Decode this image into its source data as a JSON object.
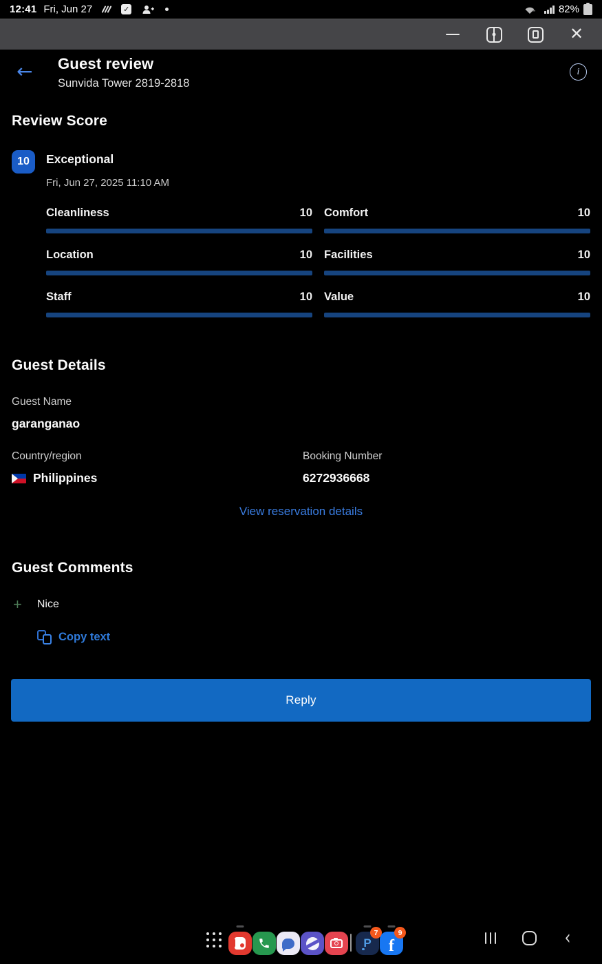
{
  "status_bar": {
    "time": "12:41",
    "date": "Fri, Jun 27",
    "battery": "82%",
    "left_icons": [
      "stylus-icon",
      "checkbox-icon",
      "add-contact-icon",
      "notification-dot"
    ],
    "right_icons": [
      "wifi-icon",
      "signal-icon",
      "battery-icon"
    ]
  },
  "window_controls": {
    "buttons": [
      "minimize",
      "split-screen",
      "pop-up-view",
      "close"
    ],
    "close_glyph": "✕"
  },
  "header": {
    "title": "Guest review",
    "subtitle": "Sunvida Tower 2819-2818",
    "back_glyph": "←",
    "info_glyph": "i"
  },
  "review_score": {
    "heading": "Review Score",
    "overall_score": "10",
    "overall_label": "Exceptional",
    "date": "Fri, Jun 27, 2025 11:10 AM",
    "max_score": 10,
    "categories": [
      {
        "label": "Cleanliness",
        "value": 10
      },
      {
        "label": "Comfort",
        "value": 10
      },
      {
        "label": "Location",
        "value": 10
      },
      {
        "label": "Facilities",
        "value": 10
      },
      {
        "label": "Staff",
        "value": 10
      },
      {
        "label": "Value",
        "value": 10
      }
    ]
  },
  "guest_details": {
    "heading": "Guest Details",
    "guest_name_label": "Guest Name",
    "guest_name": "garanganao",
    "country_label": "Country/region",
    "country": "Philippines",
    "country_flag": "philippines-flag",
    "booking_number_label": "Booking Number",
    "booking_number": "6272936668",
    "view_reservation_link": "View reservation details"
  },
  "guest_comments": {
    "heading": "Guest Comments",
    "plus_glyph": "+",
    "comment": "Nice",
    "copy_label": "Copy text"
  },
  "reply_button_label": "Reply",
  "colors": {
    "accent_blue": "#1269c2",
    "link_blue": "#3a7de2",
    "score_badge_blue": "#1a5cc6",
    "bar_fill_blue": "#16447f",
    "badge_orange": "#f4581c",
    "plus_green": "#4e7d58",
    "titlebar_gray": "#454548",
    "background": "#000000"
  },
  "dock": {
    "apps": [
      {
        "name": "contacts-app-icon",
        "badge": ""
      },
      {
        "name": "phone-app-icon",
        "badge": ""
      },
      {
        "name": "messages-app-icon",
        "badge": ""
      },
      {
        "name": "internet-app-icon",
        "badge": ""
      },
      {
        "name": "camera-app-icon",
        "badge": ""
      },
      {
        "name": "p-app-icon",
        "badge": "7"
      },
      {
        "name": "facebook-app-icon",
        "badge": "9"
      }
    ],
    "nav": [
      "recents-button",
      "home-button",
      "back-button"
    ]
  }
}
